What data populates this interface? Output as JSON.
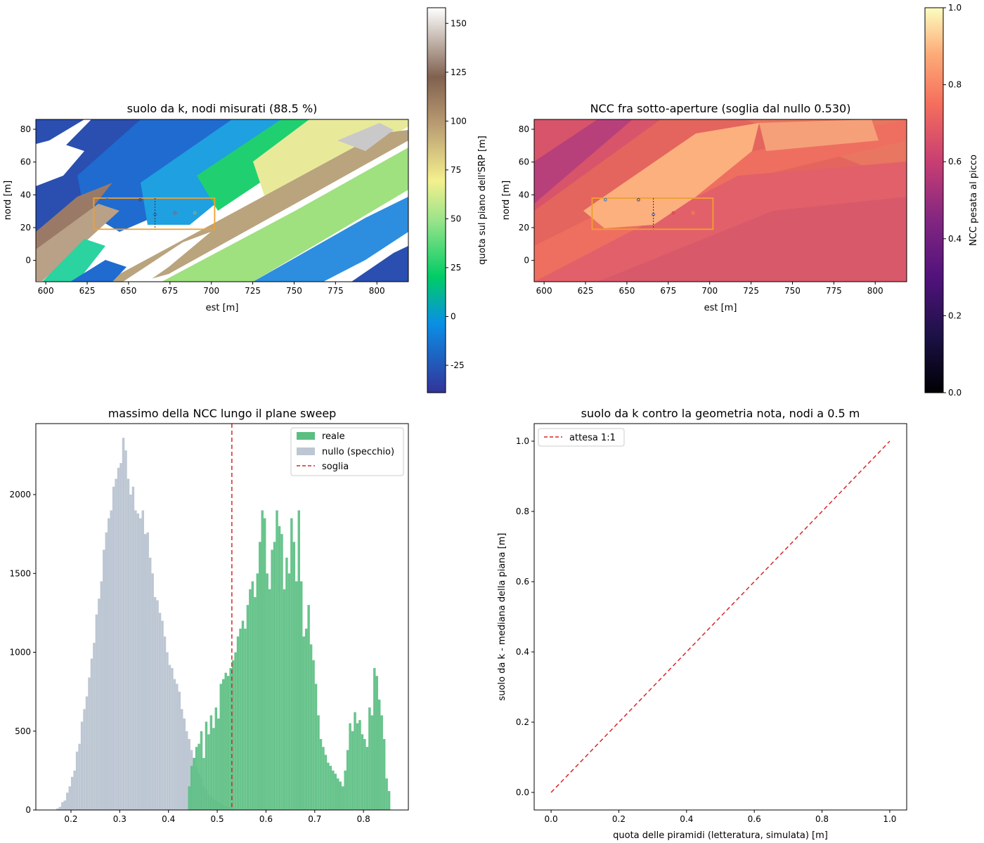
{
  "panels": {
    "ground_map": {
      "title": "suolo da k, nodi misurati (88.5 %)",
      "xlabel": "est [m]",
      "ylabel": "nord [m]",
      "xticks": [
        600,
        625,
        650,
        675,
        700,
        725,
        750,
        775,
        800
      ],
      "yticks": [
        0,
        20,
        40,
        60,
        80
      ],
      "xlim": [
        594,
        819
      ],
      "ylim": [
        -13,
        86
      ],
      "colorbar_label": "quota sul piano dell'SRP [m]",
      "colorbar_ticks": [
        -25,
        0,
        25,
        50,
        75,
        100,
        125,
        150
      ],
      "colorbar_range": [
        -39,
        158
      ],
      "colormap": "terrain",
      "box_color": "#f0a030",
      "box_east": [
        629,
        702
      ],
      "box_north": [
        19,
        38
      ]
    },
    "ncc_map": {
      "title": "NCC fra sotto-aperture (soglia dal nullo 0.530)",
      "xlabel": "est [m]",
      "ylabel": "nord [m]",
      "xticks": [
        600,
        625,
        650,
        675,
        700,
        725,
        750,
        775,
        800
      ],
      "yticks": [
        0,
        20,
        40,
        60,
        80
      ],
      "xlim": [
        594,
        819
      ],
      "ylim": [
        -13,
        86
      ],
      "colorbar_label": "NCC pesata al picco",
      "colorbar_ticks": [
        0.0,
        0.2,
        0.4,
        0.6,
        0.8,
        1.0
      ],
      "colorbar_range": [
        0,
        1
      ],
      "colormap": "magma",
      "box_color": "#f0a030",
      "box_east": [
        629,
        702
      ],
      "box_north": [
        19,
        38
      ]
    },
    "histogram": {
      "title": "massimo della NCC lungo il plane sweep",
      "xticks": [
        0.2,
        0.3,
        0.4,
        0.5,
        0.6,
        0.7,
        0.8
      ],
      "yticks": [
        0,
        500,
        1000,
        1500,
        2000
      ],
      "xlim": [
        0.128,
        0.892
      ],
      "ylim": [
        0,
        2450
      ],
      "threshold": 0.53
    },
    "scatter": {
      "title": "suolo da k contro la geometria nota, nodi a 0.5 m",
      "xlabel": "quota delle piramidi (letteratura, simulata) [m]",
      "ylabel": "suolo da k - mediana della piana [m]",
      "xticks": [
        0.0,
        0.2,
        0.4,
        0.6,
        0.8,
        1.0
      ],
      "yticks": [
        0.0,
        0.2,
        0.4,
        0.6,
        0.8,
        1.0
      ],
      "xlim": [
        -0.05,
        1.05
      ],
      "ylim": [
        -0.05,
        1.05
      ]
    }
  },
  "legends": {
    "histogram": [
      {
        "label": "reale",
        "color": "#5bbf82",
        "kind": "patch"
      },
      {
        "label": "nullo (specchio)",
        "color": "#bdc7d3",
        "kind": "patch"
      },
      {
        "label": "soglia",
        "color": "#d62728",
        "kind": "dashed"
      }
    ],
    "scatter": [
      {
        "label": "attesa 1:1",
        "color": "#d62728",
        "kind": "dashed"
      }
    ]
  },
  "chart_data": [
    {
      "type": "heatmap",
      "title": "suolo da k, nodi misurati (88.5 %)",
      "xlabel": "est [m]",
      "ylabel": "nord [m]",
      "value_label": "quota sul piano dell'SRP [m]",
      "value_range": [
        -39,
        158
      ],
      "description_of_values": "elevation in diagonal NE-trending bands ranging about -35 to 150 m"
    },
    {
      "type": "heatmap",
      "title": "NCC fra sotto-aperture (soglia dal nullo 0.530)",
      "xlabel": "est [m]",
      "ylabel": "nord [m]",
      "value_label": "NCC pesata al picco",
      "value_range": [
        0,
        1
      ]
    },
    {
      "type": "bar",
      "title": "massimo della NCC lungo il plane sweep",
      "bin_width": 0.005,
      "series": [
        {
          "name": "nullo (specchio)",
          "color": "#bdc7d3",
          "x": [
            0.17,
            0.175,
            0.18,
            0.185,
            0.19,
            0.195,
            0.2,
            0.205,
            0.21,
            0.215,
            0.22,
            0.225,
            0.23,
            0.235,
            0.24,
            0.245,
            0.25,
            0.255,
            0.26,
            0.265,
            0.27,
            0.275,
            0.28,
            0.285,
            0.29,
            0.295,
            0.3,
            0.305,
            0.31,
            0.315,
            0.32,
            0.325,
            0.33,
            0.335,
            0.34,
            0.345,
            0.35,
            0.355,
            0.36,
            0.365,
            0.37,
            0.375,
            0.38,
            0.385,
            0.39,
            0.395,
            0.4,
            0.405,
            0.41,
            0.415,
            0.42,
            0.425,
            0.43,
            0.435,
            0.44,
            0.445,
            0.45,
            0.455,
            0.46,
            0.465,
            0.47,
            0.475,
            0.48,
            0.485,
            0.49,
            0.495,
            0.5,
            0.505,
            0.51,
            0.515,
            0.52,
            0.525,
            0.53,
            0.535,
            0.54,
            0.545,
            0.55,
            0.555,
            0.56,
            0.565
          ],
          "values": [
            10,
            20,
            50,
            60,
            110,
            150,
            210,
            250,
            370,
            420,
            560,
            640,
            720,
            840,
            960,
            1060,
            1240,
            1340,
            1450,
            1650,
            1760,
            1850,
            1900,
            2050,
            2100,
            2170,
            2200,
            2360,
            2280,
            2100,
            2000,
            2050,
            1900,
            1880,
            1850,
            1900,
            1750,
            1760,
            1600,
            1500,
            1350,
            1330,
            1250,
            1200,
            1100,
            1000,
            920,
            900,
            830,
            800,
            750,
            640,
            580,
            500,
            450,
            380,
            330,
            270,
            230,
            200,
            150,
            130,
            100,
            90,
            75,
            60,
            50,
            40,
            30,
            25,
            20,
            15,
            10,
            8,
            6,
            5,
            4,
            3,
            2,
            1
          ]
        },
        {
          "name": "reale",
          "color": "#5bbf82",
          "x": [
            0.44,
            0.445,
            0.45,
            0.455,
            0.46,
            0.465,
            0.47,
            0.475,
            0.48,
            0.485,
            0.49,
            0.495,
            0.5,
            0.505,
            0.51,
            0.515,
            0.52,
            0.525,
            0.53,
            0.535,
            0.54,
            0.545,
            0.55,
            0.555,
            0.56,
            0.565,
            0.57,
            0.575,
            0.58,
            0.585,
            0.59,
            0.595,
            0.6,
            0.605,
            0.61,
            0.615,
            0.62,
            0.625,
            0.63,
            0.635,
            0.64,
            0.645,
            0.65,
            0.655,
            0.66,
            0.665,
            0.67,
            0.675,
            0.68,
            0.685,
            0.69,
            0.695,
            0.7,
            0.705,
            0.71,
            0.715,
            0.72,
            0.725,
            0.73,
            0.735,
            0.74,
            0.745,
            0.75,
            0.755,
            0.76,
            0.765,
            0.77,
            0.775,
            0.78,
            0.785,
            0.79,
            0.795,
            0.8,
            0.805,
            0.81,
            0.815,
            0.82,
            0.825,
            0.83,
            0.835,
            0.84,
            0.845,
            0.85
          ],
          "values": [
            150,
            280,
            330,
            400,
            420,
            500,
            330,
            560,
            480,
            600,
            520,
            650,
            580,
            800,
            830,
            870,
            850,
            900,
            950,
            1000,
            1100,
            1150,
            1200,
            1150,
            1300,
            1400,
            1450,
            1350,
            1500,
            1700,
            1900,
            1850,
            1500,
            1400,
            1650,
            1700,
            1900,
            1800,
            1750,
            1400,
            1600,
            1500,
            1850,
            1700,
            1450,
            1900,
            1450,
            1100,
            1150,
            1300,
            1050,
            950,
            800,
            600,
            450,
            400,
            350,
            300,
            280,
            250,
            230,
            200,
            180,
            150,
            250,
            380,
            550,
            500,
            620,
            550,
            570,
            480,
            450,
            400,
            650,
            600,
            900,
            850,
            700,
            600,
            450,
            200,
            120
          ]
        }
      ],
      "threshold": 0.53
    },
    {
      "type": "line",
      "title": "suolo da k contro la geometria nota, nodi a 0.5 m",
      "xlabel": "quota delle piramidi (letteratura, simulata) [m]",
      "ylabel": "suolo da k - mediana della piana [m]",
      "series": [
        {
          "name": "attesa 1:1",
          "x": [
            0,
            1
          ],
          "values": [
            0,
            1
          ],
          "style": "dashed",
          "color": "#d62728"
        }
      ]
    }
  ]
}
